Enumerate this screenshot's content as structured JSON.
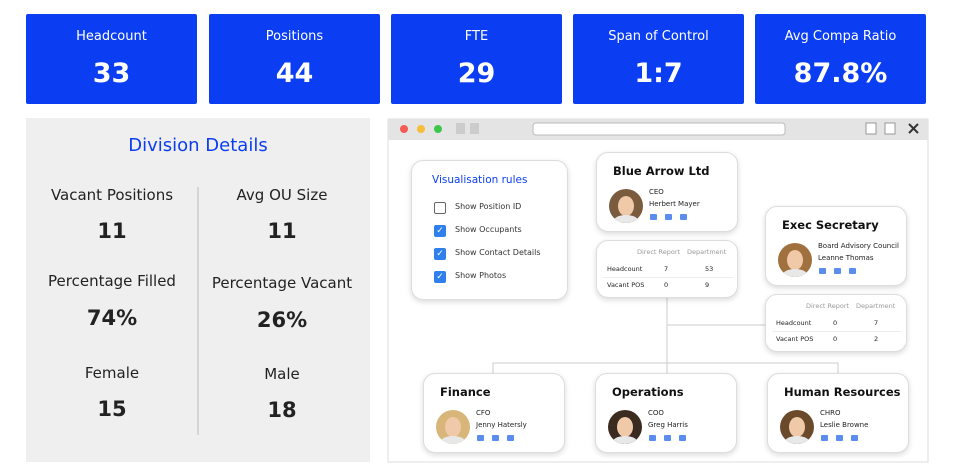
{
  "kpis": [
    {
      "label": "Headcount",
      "value": 33
    },
    {
      "label": "Positions",
      "value": 44
    },
    {
      "label": "FTE",
      "value": 29
    },
    {
      "label": "Span of Control",
      "value": "1:7"
    },
    {
      "label": "Avg Compa Ratio",
      "value": "87.8%"
    }
  ],
  "division": {
    "title": "Division Details",
    "stats": [
      {
        "label": "Vacant Positions",
        "value": 11
      },
      {
        "label": "Avg OU Size",
        "value": 11
      },
      {
        "label": "Percentage Filled",
        "value": "74%"
      },
      {
        "label": "Percentage Vacant",
        "value": "26%"
      },
      {
        "label": "Female",
        "value": 15
      },
      {
        "label": "Male",
        "value": 18
      }
    ]
  },
  "rules": {
    "title": "Visualisation rules",
    "options": [
      {
        "label": "Show Position ID",
        "checked": false
      },
      {
        "label": "Show Occupants",
        "checked": true
      },
      {
        "label": "Show Contact Details",
        "checked": true
      },
      {
        "label": "Show Photos",
        "checked": true
      }
    ]
  },
  "nodes": [
    {
      "title": "Blue Arrow Ltd",
      "role": "CEO",
      "name": "Herbert Mayer",
      "table": {
        "headers": [
          "Direct Report",
          "Department"
        ],
        "rows": [
          {
            "label": "Headcount",
            "values": [
              7,
              53
            ]
          },
          {
            "label": "Vacant POS",
            "values": [
              0,
              9
            ]
          }
        ]
      }
    },
    {
      "title": "Exec Secretary",
      "role": "Board Advisory Council",
      "name": "Leanne Thomas",
      "table": {
        "headers": [
          "Direct Report",
          "Department"
        ],
        "rows": [
          {
            "label": "Headcount",
            "values": [
              0,
              7
            ]
          },
          {
            "label": "Vacant POS",
            "values": [
              0,
              2
            ]
          }
        ]
      }
    },
    {
      "title": "Finance",
      "role": "CFO",
      "name": "Jenny Hatersly"
    },
    {
      "title": "Operations",
      "role": "COO",
      "name": "Greg Harris"
    },
    {
      "title": "Human Resources",
      "role": "CHRO",
      "name": "Leslie Browne"
    }
  ]
}
